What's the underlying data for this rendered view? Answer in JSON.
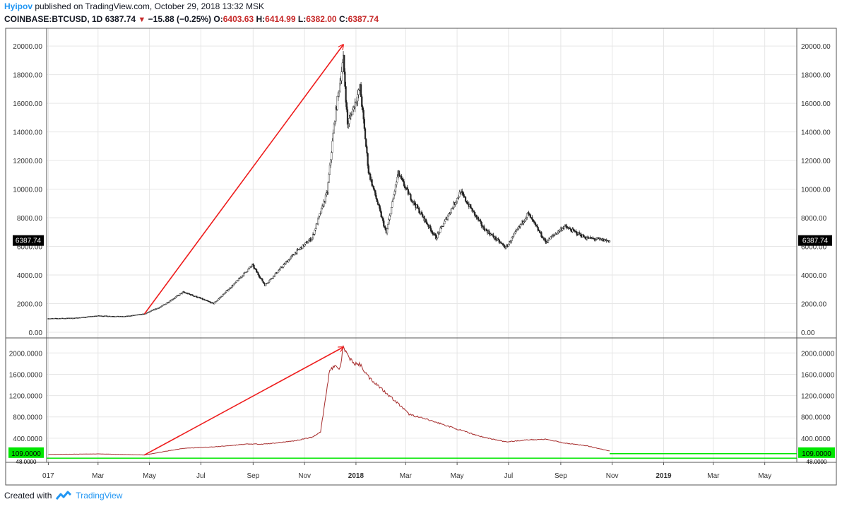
{
  "header": {
    "author": "Hyipov",
    "published_text": "published on TradingView.com, October 29, 2018 13:32 MSK",
    "symbol": "COINBASE:BTCUSD, 1D",
    "last": "6387.74",
    "change": "−15.88 (−0.25%)",
    "o_label": "O:",
    "o_value": "6403.63",
    "h_label": "H:",
    "h_value": "6414.99",
    "l_label": "L:",
    "l_value": "6382.00",
    "c_label": "C:",
    "c_value": "6387.74"
  },
  "footer": {
    "created_with": "Created with",
    "brand": "TradingView"
  },
  "colors": {
    "price_arrow": "#ee1c1c",
    "indicator_line": "#a52a2a",
    "level_line": "#00e600",
    "price_label_bg": "#000000",
    "level_label_bg": "#00e600",
    "down_triangle": "#c62828"
  },
  "chart_data": [
    {
      "type": "candlestick",
      "title": "",
      "grid": true,
      "ylim": [
        0,
        20500
      ],
      "yticks": [
        "0.00",
        "2000.00",
        "4000.00",
        "6000.00",
        "8000.00",
        "10000.00",
        "12000.00",
        "14000.00",
        "16000.00",
        "18000.00",
        "20000.00"
      ],
      "last_price_label": "6387.74",
      "x_dates": [
        "2017-01-01",
        "2017-02-01",
        "2017-03-01",
        "2017-04-01",
        "2017-04-25",
        "2017-05-15",
        "2017-06-10",
        "2017-06-25",
        "2017-07-16",
        "2017-08-10",
        "2017-08-31",
        "2017-09-15",
        "2017-10-01",
        "2017-10-20",
        "2017-11-10",
        "2017-11-28",
        "2017-12-07",
        "2017-12-17",
        "2017-12-22",
        "2018-01-06",
        "2018-01-16",
        "2018-02-06",
        "2018-02-20",
        "2018-03-05",
        "2018-04-06",
        "2018-05-05",
        "2018-06-01",
        "2018-06-28",
        "2018-07-24",
        "2018-08-14",
        "2018-09-05",
        "2018-10-01",
        "2018-10-29"
      ],
      "close": [
        960,
        990,
        1150,
        1100,
        1280,
        1800,
        2800,
        2500,
        2000,
        3400,
        4700,
        3300,
        4300,
        5500,
        6600,
        9800,
        15000,
        19100,
        14500,
        17100,
        11200,
        6900,
        11100,
        9600,
        6600,
        9800,
        7300,
        5900,
        8300,
        6300,
        7400,
        6600,
        6387.74
      ],
      "annotation": {
        "type": "arrow",
        "from_date": "2017-04-25",
        "from_value": 1280,
        "to_date": "2017-12-17",
        "to_value": 20100
      }
    },
    {
      "type": "line",
      "title": "",
      "grid": true,
      "ylim": [
        0,
        2150
      ],
      "yticks": [
        "400.0000",
        "800.0000",
        "1200.0000",
        "1600.0000",
        "2000.0000"
      ],
      "x_dates": [
        "2017-01-01",
        "2017-03-01",
        "2017-04-25",
        "2017-05-15",
        "2017-06-10",
        "2017-07-20",
        "2017-08-25",
        "2017-09-15",
        "2017-10-20",
        "2017-11-10",
        "2017-11-20",
        "2017-12-01",
        "2017-12-07",
        "2017-12-13",
        "2017-12-17",
        "2017-12-22",
        "2017-12-30",
        "2018-01-06",
        "2018-01-16",
        "2018-02-06",
        "2018-02-20",
        "2018-03-05",
        "2018-04-06",
        "2018-05-05",
        "2018-06-01",
        "2018-06-28",
        "2018-07-24",
        "2018-08-14",
        "2018-09-05",
        "2018-10-01",
        "2018-10-29"
      ],
      "values": [
        95,
        105,
        85,
        140,
        210,
        240,
        290,
        290,
        350,
        420,
        520,
        1700,
        1750,
        1700,
        2110,
        1950,
        1800,
        1780,
        1550,
        1250,
        1050,
        850,
        700,
        550,
        420,
        330,
        370,
        380,
        310,
        260,
        160
      ],
      "level_line": {
        "value": 109,
        "label": "109.0000"
      },
      "lower_label": "48.0000",
      "annotation": {
        "type": "arrow",
        "from_date": "2017-04-25",
        "from_value": 85,
        "to_date": "2017-12-17",
        "to_value": 2110
      }
    }
  ],
  "x_axis": {
    "start_date": "2016-12-30",
    "end_date": "2019-06-08",
    "ticks": [
      {
        "label": "017",
        "date": "2017-01-01",
        "bold": false
      },
      {
        "label": "Mar",
        "date": "2017-03-01",
        "bold": false
      },
      {
        "label": "May",
        "date": "2017-05-01",
        "bold": false
      },
      {
        "label": "Jul",
        "date": "2017-07-01",
        "bold": false
      },
      {
        "label": "Sep",
        "date": "2017-09-01",
        "bold": false
      },
      {
        "label": "Nov",
        "date": "2017-11-01",
        "bold": false
      },
      {
        "label": "2018",
        "date": "2018-01-01",
        "bold": true
      },
      {
        "label": "Mar",
        "date": "2018-03-01",
        "bold": false
      },
      {
        "label": "May",
        "date": "2018-05-01",
        "bold": false
      },
      {
        "label": "Jul",
        "date": "2018-07-01",
        "bold": false
      },
      {
        "label": "Sep",
        "date": "2018-09-01",
        "bold": false
      },
      {
        "label": "Nov",
        "date": "2018-11-01",
        "bold": false
      },
      {
        "label": "2019",
        "date": "2019-01-01",
        "bold": true
      },
      {
        "label": "Mar",
        "date": "2019-03-01",
        "bold": false
      },
      {
        "label": "May",
        "date": "2019-05-01",
        "bold": false
      }
    ]
  }
}
